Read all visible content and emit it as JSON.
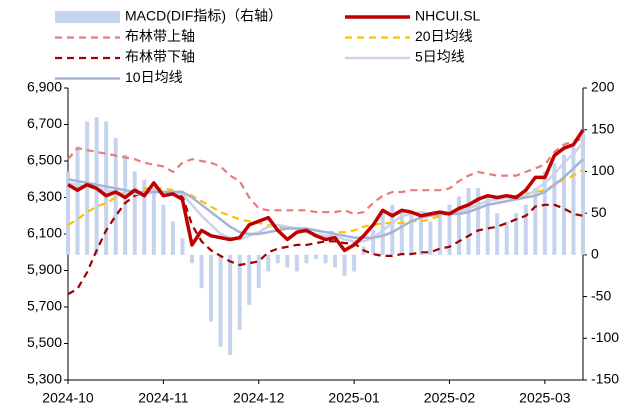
{
  "chart_data": {
    "type": "combo",
    "categories": [
      "2024-10",
      null,
      null,
      null,
      null,
      null,
      null,
      null,
      null,
      null,
      "2024-11",
      null,
      null,
      null,
      null,
      null,
      null,
      null,
      null,
      null,
      "2024-12",
      null,
      null,
      null,
      null,
      null,
      null,
      null,
      null,
      null,
      "2025-01",
      null,
      null,
      null,
      null,
      null,
      null,
      null,
      null,
      null,
      "2025-02",
      null,
      null,
      null,
      null,
      null,
      null,
      null,
      null,
      null,
      "2025-03",
      null,
      null,
      null,
      null
    ],
    "ylim": [
      5300,
      6900
    ],
    "yticks": [
      {
        "value": 5300,
        "label": "5,300"
      },
      {
        "value": 5500,
        "label": "5,500"
      },
      {
        "value": 5700,
        "label": "5,700"
      },
      {
        "value": 5900,
        "label": "5,900"
      },
      {
        "value": 6100,
        "label": "6,100"
      },
      {
        "value": 6300,
        "label": "6,300"
      },
      {
        "value": 6500,
        "label": "6,500"
      },
      {
        "value": 6700,
        "label": "6,700"
      },
      {
        "value": 6900,
        "label": "6,900"
      }
    ],
    "y2lim": [
      -150,
      200
    ],
    "y2ticks": [
      -150,
      -100,
      -50,
      0,
      50,
      100,
      150,
      200
    ],
    "legend": "top",
    "series": [
      {
        "name": "MACD(DIF指标)（右轴）",
        "type": "bar",
        "axis": "y2",
        "color": "#c5d3ec",
        "values": [
          100,
          130,
          160,
          165,
          160,
          140,
          120,
          100,
          90,
          80,
          60,
          40,
          20,
          -10,
          -40,
          -80,
          -110,
          -120,
          -90,
          -60,
          -40,
          -20,
          -10,
          -15,
          -20,
          -10,
          -5,
          -10,
          -15,
          -25,
          -20,
          10,
          30,
          50,
          60,
          55,
          50,
          45,
          40,
          50,
          60,
          70,
          80,
          80,
          70,
          50,
          40,
          50,
          60,
          80,
          100,
          110,
          120,
          130,
          150
        ]
      },
      {
        "name": "NHCUI.SL",
        "type": "line",
        "style": "bold",
        "color": "#c00000",
        "values": [
          6370,
          6340,
          6370,
          6350,
          6310,
          6330,
          6300,
          6340,
          6310,
          6380,
          6310,
          6320,
          6290,
          6040,
          6120,
          6090,
          6080,
          6070,
          6080,
          6150,
          6170,
          6190,
          6120,
          6070,
          6110,
          6120,
          6090,
          6070,
          6080,
          6010,
          6040,
          6090,
          6150,
          6230,
          6200,
          6230,
          6220,
          6200,
          6210,
          6220,
          6210,
          6240,
          6260,
          6290,
          6310,
          6300,
          6310,
          6300,
          6340,
          6410,
          6410,
          6530,
          6570,
          6590,
          6670
        ]
      },
      {
        "name": "布林带上轴",
        "type": "line",
        "style": "dashed",
        "color": "#e87c7c",
        "values": [
          6510,
          6570,
          6560,
          6550,
          6540,
          6530,
          6520,
          6510,
          6490,
          6480,
          6470,
          6440,
          6490,
          6510,
          6500,
          6490,
          6470,
          6420,
          6390,
          6300,
          6240,
          6230,
          6230,
          6230,
          6230,
          6230,
          6220,
          6220,
          6220,
          6230,
          6210,
          6220,
          6270,
          6310,
          6330,
          6330,
          6340,
          6340,
          6340,
          6340,
          6350,
          6390,
          6420,
          6440,
          6430,
          6420,
          6420,
          6420,
          6440,
          6460,
          6480,
          6550,
          6590,
          6610,
          6620
        ]
      },
      {
        "name": "20日均线",
        "type": "line",
        "style": "dashed",
        "color": "#ffc000",
        "values": [
          6150,
          6180,
          6220,
          6250,
          6270,
          6300,
          6330,
          6340,
          6350,
          6350,
          6350,
          6340,
          6330,
          6310,
          6280,
          6250,
          6220,
          6200,
          6180,
          6170,
          6160,
          6150,
          6140,
          6130,
          6130,
          6120,
          6120,
          6110,
          6110,
          6110,
          6120,
          6140,
          6150,
          6160,
          6160,
          6160,
          6170,
          6170,
          6180,
          6200,
          6210,
          6230,
          6240,
          6260,
          6280,
          6290,
          6300,
          6310,
          6320,
          6330,
          6340,
          6370,
          6400,
          6420,
          6450
        ]
      },
      {
        "name": "布林带下轴",
        "type": "line",
        "style": "dashed",
        "color": "#a00000",
        "values": [
          5770,
          5800,
          5890,
          6010,
          6120,
          6200,
          6270,
          6310,
          6330,
          6330,
          6330,
          6320,
          6310,
          6150,
          6060,
          6010,
          5980,
          5950,
          5930,
          5940,
          5950,
          6000,
          6020,
          6030,
          6040,
          6040,
          6050,
          6060,
          6060,
          6050,
          6050,
          6010,
          5990,
          5980,
          5980,
          5990,
          5990,
          6000,
          6000,
          6020,
          6030,
          6060,
          6090,
          6120,
          6130,
          6140,
          6160,
          6180,
          6200,
          6250,
          6260,
          6260,
          6240,
          6210,
          6200
        ]
      },
      {
        "name": "5日均线",
        "type": "line",
        "style": "solid",
        "color": "#c9d3ea",
        "values": [
          6380,
          6370,
          6360,
          6350,
          6340,
          6330,
          6320,
          6320,
          6320,
          6330,
          6330,
          6330,
          6320,
          6260,
          6200,
          6150,
          6100,
          6080,
          6070,
          6090,
          6110,
          6140,
          6150,
          6140,
          6130,
          6110,
          6100,
          6090,
          6090,
          6070,
          6060,
          6060,
          6080,
          6120,
          6160,
          6200,
          6210,
          6220,
          6210,
          6210,
          6210,
          6220,
          6240,
          6260,
          6280,
          6290,
          6300,
          6300,
          6310,
          6340,
          6380,
          6430,
          6490,
          6540,
          6600
        ]
      },
      {
        "name": "10日均线",
        "type": "line",
        "style": "solid",
        "color": "#a5b4d6",
        "values": [
          6400,
          6390,
          6380,
          6370,
          6360,
          6350,
          6340,
          6330,
          6330,
          6330,
          6330,
          6330,
          6330,
          6300,
          6260,
          6220,
          6180,
          6140,
          6110,
          6100,
          6100,
          6110,
          6120,
          6130,
          6130,
          6130,
          6120,
          6110,
          6100,
          6090,
          6080,
          6080,
          6080,
          6090,
          6110,
          6140,
          6170,
          6190,
          6200,
          6210,
          6210,
          6210,
          6220,
          6240,
          6260,
          6270,
          6280,
          6290,
          6300,
          6310,
          6330,
          6370,
          6410,
          6460,
          6510
        ]
      }
    ]
  }
}
